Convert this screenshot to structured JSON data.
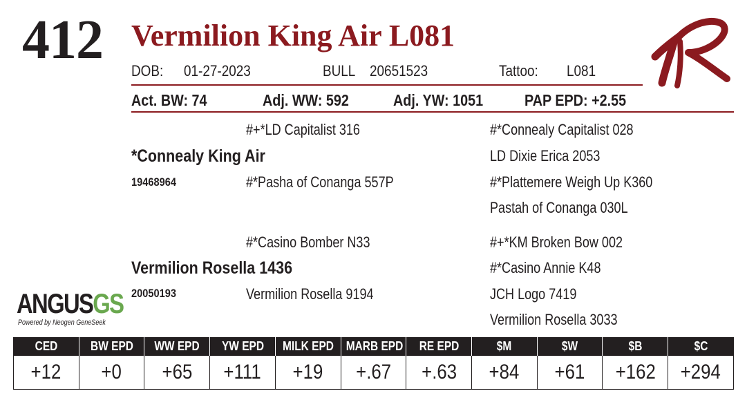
{
  "lot_number": "412",
  "animal_name": "Vermilion King Air L081",
  "brand_logo": "vr-script-logo",
  "details": {
    "dob_label": "DOB:",
    "dob_value": "01-27-2023",
    "sex_label": "BULL",
    "registration": "20651523",
    "tattoo_label": "Tattoo:",
    "tattoo_value": "L081"
  },
  "performance": {
    "act_bw": "Act. BW: 74",
    "adj_ww": "Adj. WW: 592",
    "adj_yw": "Adj. YW: 1051",
    "pap_epd": "PAP EPD: +2.55"
  },
  "pedigree": {
    "sire": {
      "name": "*Connealy King Air",
      "reg": "19468964",
      "sire": "#+*LD Capitalist 316",
      "dam": "#*Pasha of Conanga 557P",
      "sire_sire": "#*Connealy Capitalist 028",
      "sire_dam": "LD Dixie Erica 2053",
      "dam_sire": "#*Plattemere Weigh Up K360",
      "dam_dam": "Pastah of Conanga 030L"
    },
    "dam": {
      "name": "Vermilion Rosella 1436",
      "reg": "20050193",
      "sire": "#*Casino Bomber N33",
      "dam": "Vermilion Rosella 9194",
      "sire_sire": "#+*KM Broken Bow 002",
      "sire_dam": "#*Casino Annie K48",
      "dam_sire": "JCH Logo 7419",
      "dam_dam": "Vermilion Rosella 3033"
    }
  },
  "angus_logo": {
    "main_a": "ANGUS",
    "main_b": "GS",
    "tagline": "Powered by Neogen GeneSeek"
  },
  "epd_table": {
    "headers": [
      "CED",
      "BW EPD",
      "WW EPD",
      "YW EPD",
      "MILK EPD",
      "MARB EPD",
      "RE EPD",
      "$M",
      "$W",
      "$B",
      "$C"
    ],
    "values": [
      "+12",
      "+0",
      "+65",
      "+111",
      "+19",
      "+.67",
      "+.63",
      "+84",
      "+61",
      "+162",
      "+294"
    ]
  },
  "colors": {
    "accent": "#8b1a1f",
    "text": "#231f20",
    "angus_green": "#6aa84f"
  }
}
